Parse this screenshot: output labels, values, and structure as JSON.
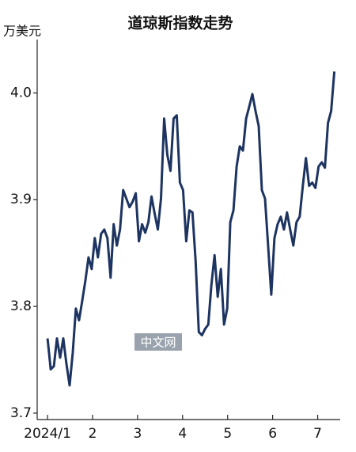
{
  "chart_data": {
    "type": "line",
    "title": "道琼斯指数走势",
    "y_label": "万美元",
    "watermark": "中文网",
    "x": [
      1.0,
      1.07,
      1.14,
      1.21,
      1.28,
      1.35,
      1.42,
      1.49,
      1.56,
      1.63,
      1.7,
      1.77,
      1.84,
      1.91,
      1.98,
      2.05,
      2.12,
      2.19,
      2.26,
      2.33,
      2.4,
      2.47,
      2.54,
      2.61,
      2.68,
      2.75,
      2.82,
      2.89,
      2.96,
      3.03,
      3.1,
      3.17,
      3.24,
      3.31,
      3.38,
      3.45,
      3.52,
      3.59,
      3.66,
      3.73,
      3.8,
      3.87,
      3.94,
      4.01,
      4.08,
      4.15,
      4.22,
      4.29,
      4.36,
      4.43,
      4.5,
      4.57,
      4.64,
      4.71,
      4.78,
      4.85,
      4.92,
      4.99,
      5.06,
      5.13,
      5.2,
      5.27,
      5.34,
      5.41,
      5.48,
      5.55,
      5.62,
      5.69,
      5.76,
      5.83,
      5.9,
      5.97,
      6.04,
      6.11,
      6.18,
      6.25,
      6.32,
      6.39,
      6.46,
      6.53,
      6.6,
      6.67,
      6.74,
      6.81,
      6.88,
      6.95,
      7.02,
      7.09,
      7.16,
      7.23,
      7.3,
      7.37
    ],
    "series": [
      {
        "name": "道琼斯指数",
        "color": "#1d3461",
        "values": [
          3.77,
          3.741,
          3.744,
          3.77,
          3.752,
          3.77,
          3.746,
          3.726,
          3.757,
          3.798,
          3.787,
          3.805,
          3.824,
          3.846,
          3.835,
          3.864,
          3.846,
          3.868,
          3.872,
          3.864,
          3.827,
          3.877,
          3.857,
          3.872,
          3.909,
          3.901,
          3.893,
          3.898,
          3.906,
          3.861,
          3.877,
          3.869,
          3.879,
          3.903,
          3.887,
          3.872,
          3.901,
          3.976,
          3.942,
          3.927,
          3.976,
          3.979,
          3.916,
          3.909,
          3.861,
          3.89,
          3.888,
          3.842,
          3.776,
          3.773,
          3.779,
          3.783,
          3.82,
          3.848,
          3.809,
          3.835,
          3.783,
          3.798,
          3.879,
          3.89,
          3.931,
          3.95,
          3.946,
          3.976,
          3.987,
          3.999,
          3.983,
          3.969,
          3.909,
          3.901,
          3.857,
          3.811,
          3.864,
          3.877,
          3.884,
          3.872,
          3.888,
          3.872,
          3.857,
          3.879,
          3.884,
          3.913,
          3.939,
          3.913,
          3.916,
          3.911,
          3.931,
          3.935,
          3.93,
          3.972,
          3.983,
          4.02
        ]
      }
    ],
    "xlim": [
      0.77,
      7.5
    ],
    "xticks": [
      {
        "value": 1,
        "label": "2024/1"
      },
      2,
      3,
      4,
      5,
      6,
      7
    ],
    "ylim": [
      3.694,
      4.05
    ],
    "yticks": [
      3.7,
      3.8,
      3.9,
      {
        "value": 4,
        "label": "4.0"
      }
    ],
    "grid": false
  }
}
